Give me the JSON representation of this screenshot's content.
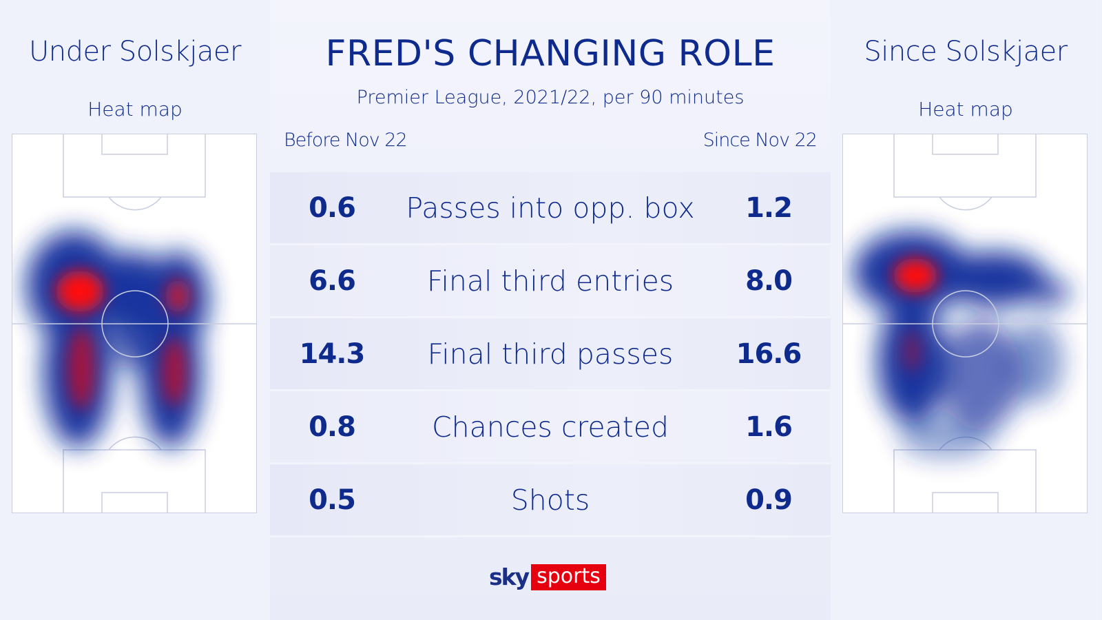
{
  "title": "FRED'S CHANGING ROLE",
  "subtitle": "Premier League, 2021/22, per 90 minutes",
  "left_panel": {
    "title": "Under Solskjaer",
    "subtitle": "Heat map"
  },
  "right_panel": {
    "title": "Since Solskjaer",
    "subtitle": "Heat map"
  },
  "columns": {
    "before": "Before Nov 22",
    "since": "Since Nov 22"
  },
  "stats": [
    {
      "label": "Passes into opp. box",
      "before": "0.6",
      "since": "1.2"
    },
    {
      "label": "Final third entries",
      "before": "6.6",
      "since": "8.0"
    },
    {
      "label": "Final third passes",
      "before": "14.3",
      "since": "16.6"
    },
    {
      "label": "Chances created",
      "before": "0.8",
      "since": "1.6"
    },
    {
      "label": "Shots",
      "before": "0.5",
      "since": "0.9"
    }
  ],
  "logo": {
    "sky": "sky",
    "sports": "sports"
  },
  "colors": {
    "text": "#0d2a8c",
    "heat_high": "#ff0000",
    "heat_low": "#0a2a9a",
    "brand_red": "#e6000f"
  }
}
